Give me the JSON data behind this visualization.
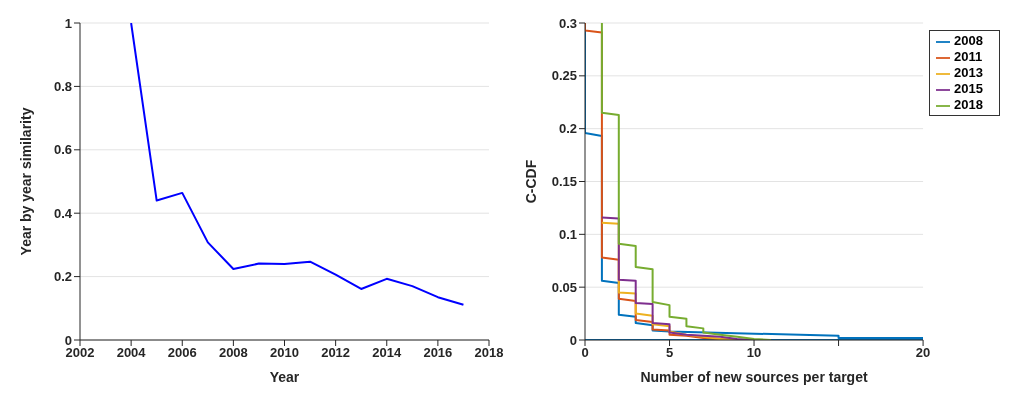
{
  "chart_data": [
    {
      "type": "line",
      "xlabel": "Year",
      "ylabel": "Year by year similarity",
      "x": [
        2004,
        2005,
        2006,
        2007,
        2008,
        2009,
        2010,
        2011,
        2012,
        2013,
        2014,
        2015,
        2016,
        2017
      ],
      "series": [
        {
          "color": "#0000ff",
          "values": [
            1.0,
            0.44,
            0.464,
            0.308,
            0.224,
            0.241,
            0.24,
            0.247,
            0.206,
            0.161,
            0.193,
            0.17,
            0.135,
            0.111
          ]
        }
      ],
      "xlim": [
        2002,
        2018
      ],
      "xticks": [
        2002,
        2004,
        2006,
        2008,
        2010,
        2012,
        2014,
        2016,
        2018
      ],
      "ylim": [
        0,
        1
      ],
      "yticks": [
        0,
        0.2,
        0.4,
        0.6,
        0.8,
        1
      ],
      "grid": "y"
    },
    {
      "type": "line",
      "xlabel": "Number of new sources per target",
      "ylabel": "C-CDF",
      "legend": "top right",
      "series": [
        {
          "name": "2008",
          "color": "#0072bd",
          "x": [
            0,
            0,
            1,
            1,
            2,
            2,
            3,
            3,
            4,
            4,
            5,
            15,
            15,
            20,
            20,
            0
          ],
          "values": [
            0.3,
            0.196,
            0.193,
            0.056,
            0.054,
            0.024,
            0.022,
            0.016,
            0.014,
            0.009,
            0.008,
            0.004,
            0.002,
            0.002,
            0,
            0
          ]
        },
        {
          "name": "2011",
          "color": "#d95319",
          "x": [
            0,
            0,
            1,
            1,
            2,
            2,
            3,
            3,
            4,
            4,
            5,
            5,
            6,
            7,
            8,
            9
          ],
          "values": [
            0.3,
            0.293,
            0.291,
            0.078,
            0.076,
            0.039,
            0.037,
            0.019,
            0.017,
            0.01,
            0.009,
            0.005,
            0.004,
            0.002,
            0.001,
            0
          ]
        },
        {
          "name": "2013",
          "color": "#edb120",
          "x": [
            1,
            2,
            2,
            3,
            3,
            4,
            4,
            5,
            5,
            6,
            7,
            8,
            9
          ],
          "values": [
            0.111,
            0.11,
            0.045,
            0.044,
            0.025,
            0.023,
            0.015,
            0.013,
            0.008,
            0.005,
            0.003,
            0.001,
            0
          ]
        },
        {
          "name": "2015",
          "color": "#7e2f8e",
          "x": [
            1,
            2,
            2,
            3,
            3,
            4,
            4,
            5,
            5,
            6,
            7,
            8,
            9,
            10
          ],
          "values": [
            0.116,
            0.115,
            0.057,
            0.056,
            0.035,
            0.034,
            0.016,
            0.015,
            0.007,
            0.005,
            0.004,
            0.003,
            0.001,
            0
          ]
        },
        {
          "name": "2018",
          "color": "#77ac30",
          "x": [
            1,
            1,
            2,
            2,
            3,
            3,
            4,
            4,
            5,
            5,
            6,
            6,
            7,
            7,
            8,
            9,
            10,
            11
          ],
          "values": [
            0.3,
            0.215,
            0.213,
            0.091,
            0.089,
            0.069,
            0.067,
            0.036,
            0.033,
            0.022,
            0.02,
            0.013,
            0.011,
            0.007,
            0.005,
            0.003,
            0.001,
            0
          ]
        }
      ],
      "xlim": [
        0,
        20
      ],
      "xticks": [
        0,
        5,
        10,
        {
          "value": 15,
          "label": null
        },
        20
      ],
      "ylim": [
        0,
        0.3
      ],
      "yticks": [
        0,
        0.05,
        0.1,
        0.15,
        0.2,
        0.25,
        0.3
      ],
      "grid": "y"
    }
  ]
}
